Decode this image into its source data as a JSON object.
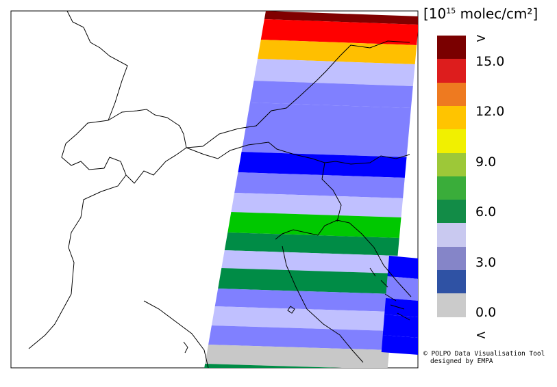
{
  "legend": {
    "unit_prefix": "[10",
    "unit_exponent": "15",
    "unit_suffix": " molec/cm²]",
    "ticks": [
      ">",
      "15.0",
      "12.0",
      "9.0",
      "6.0",
      "3.0",
      "0.0",
      "<"
    ],
    "bins": [
      {
        "range": "above max",
        "color": "#7a0000"
      },
      {
        "range": "13.5–15.0",
        "color": "#dd1d1d"
      },
      {
        "range": "12.0–13.5",
        "color": "#ee7a20"
      },
      {
        "range": "10.5–12.0",
        "color": "#ffc400"
      },
      {
        "range": "9.0–10.5",
        "color": "#f1f000"
      },
      {
        "range": "7.5–9.0",
        "color": "#9dc838"
      },
      {
        "range": "6.0–7.5",
        "color": "#3aad3a"
      },
      {
        "range": "4.5–6.0",
        "color": "#128c47"
      },
      {
        "range": "3.0–4.5",
        "color": "#c9c9f0"
      },
      {
        "range": "1.5–3.0",
        "color": "#8585c8"
      },
      {
        "range": "0.0–1.5",
        "color": "#2f52a4"
      },
      {
        "range": "below min",
        "color": "#cbcbcb"
      }
    ]
  },
  "swath_colors": {
    "darkred": "#800000",
    "red": "#ff0000",
    "orange": "#ffbf00",
    "lavender": "#c0c0ff",
    "mediumblue": "#8080ff",
    "blue": "#0000ff",
    "green": "#00c800",
    "darkgreen": "#008c46",
    "grey": "#c8c8c8"
  },
  "credit": {
    "line1": "© POLPO Data Visualisation Tool",
    "line2": "designed by EMPA"
  }
}
